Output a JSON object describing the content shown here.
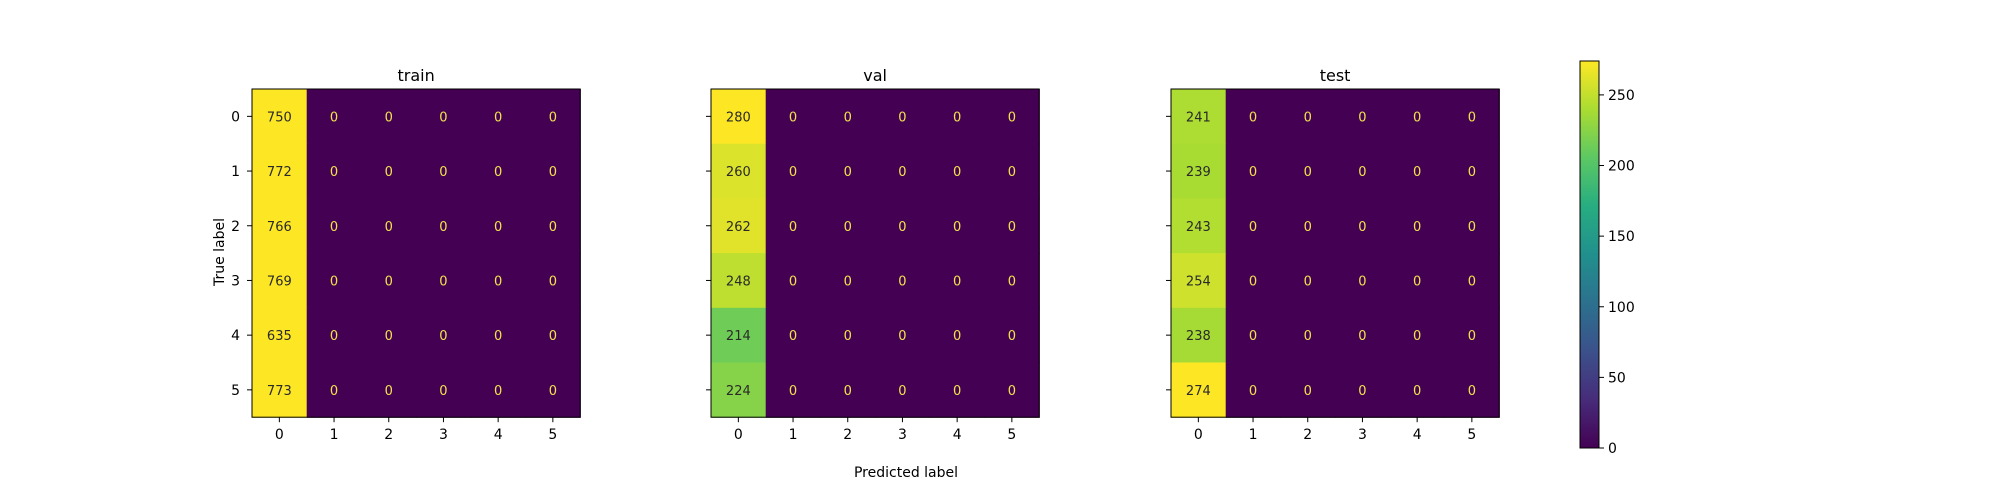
{
  "chart_data": {
    "type": "heatmap",
    "colormap": "viridis",
    "vmin": 0,
    "vmax": 274,
    "xlabel": "Predicted label",
    "ylabel": "True label",
    "categories": [
      "0",
      "1",
      "2",
      "3",
      "4",
      "5"
    ],
    "colorbar_ticks": [
      "0",
      "50",
      "100",
      "150",
      "200",
      "250"
    ],
    "panels": [
      {
        "title": "train",
        "matrix": [
          [
            750,
            0,
            0,
            0,
            0,
            0
          ],
          [
            772,
            0,
            0,
            0,
            0,
            0
          ],
          [
            766,
            0,
            0,
            0,
            0,
            0
          ],
          [
            769,
            0,
            0,
            0,
            0,
            0
          ],
          [
            635,
            0,
            0,
            0,
            0,
            0
          ],
          [
            773,
            0,
            0,
            0,
            0,
            0
          ]
        ]
      },
      {
        "title": "val",
        "matrix": [
          [
            280,
            0,
            0,
            0,
            0,
            0
          ],
          [
            260,
            0,
            0,
            0,
            0,
            0
          ],
          [
            262,
            0,
            0,
            0,
            0,
            0
          ],
          [
            248,
            0,
            0,
            0,
            0,
            0
          ],
          [
            214,
            0,
            0,
            0,
            0,
            0
          ],
          [
            224,
            0,
            0,
            0,
            0,
            0
          ]
        ]
      },
      {
        "title": "test",
        "matrix": [
          [
            241,
            0,
            0,
            0,
            0,
            0
          ],
          [
            239,
            0,
            0,
            0,
            0,
            0
          ],
          [
            243,
            0,
            0,
            0,
            0,
            0
          ],
          [
            254,
            0,
            0,
            0,
            0,
            0
          ],
          [
            238,
            0,
            0,
            0,
            0,
            0
          ],
          [
            274,
            0,
            0,
            0,
            0,
            0
          ]
        ]
      }
    ]
  }
}
